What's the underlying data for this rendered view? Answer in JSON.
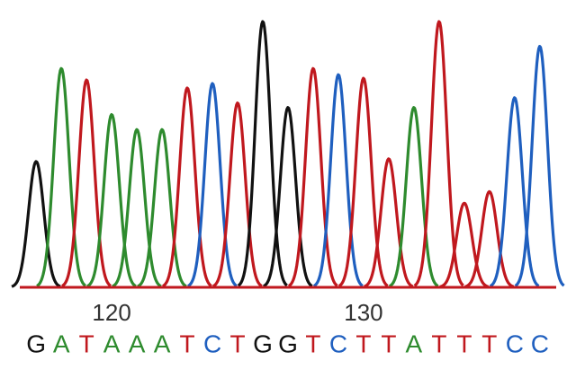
{
  "chart_data": {
    "type": "chromatogram",
    "x": [
      117,
      118,
      119,
      120,
      121,
      122,
      123,
      124,
      125,
      126,
      127,
      128,
      129,
      130,
      131,
      132,
      133,
      134,
      135,
      136,
      137
    ],
    "bases": [
      "G",
      "A",
      "T",
      "A",
      "A",
      "A",
      "T",
      "C",
      "T",
      "G",
      "G",
      "T",
      "C",
      "T",
      "T",
      "A",
      "T",
      "T",
      "T",
      "C",
      "C"
    ],
    "values": [
      142,
      247,
      234,
      195,
      178,
      178,
      225,
      230,
      208,
      300,
      203,
      247,
      240,
      236,
      145,
      203,
      300,
      95,
      108,
      214,
      272
    ],
    "ylim": [
      0,
      310
    ],
    "xlim": [
      116.35,
      137.65
    ],
    "xticks": [
      120,
      130
    ],
    "colors": {
      "A": "#2e8b2e",
      "C": "#1f5fbf",
      "G": "#111111",
      "T": "#c0181e"
    }
  }
}
